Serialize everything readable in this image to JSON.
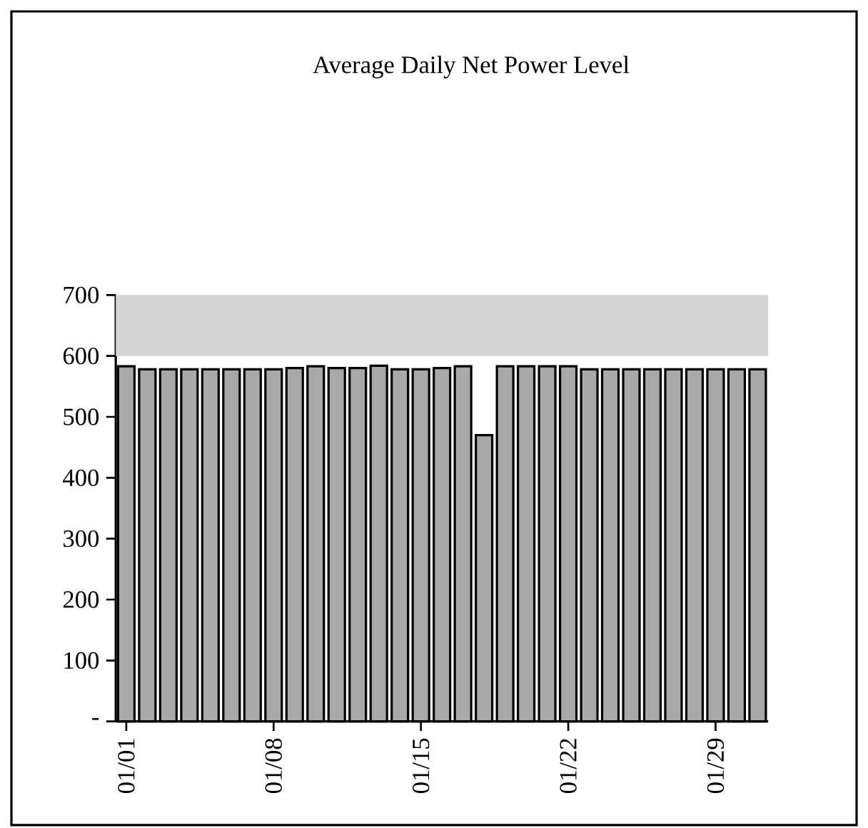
{
  "chart_data": {
    "type": "bar",
    "title": "Average Daily Net Power Level",
    "categories": [
      "01/01",
      null,
      null,
      null,
      null,
      null,
      null,
      "01/08",
      null,
      null,
      null,
      null,
      null,
      null,
      "01/15",
      null,
      null,
      null,
      null,
      null,
      null,
      "01/22",
      null,
      null,
      null,
      null,
      null,
      null,
      "01/29",
      null,
      null
    ],
    "values": [
      583,
      578,
      578,
      578,
      578,
      578,
      578,
      578,
      580,
      583,
      580,
      580,
      584,
      578,
      578,
      580,
      583,
      470,
      583,
      583,
      583,
      583,
      578,
      578,
      578,
      578,
      578,
      578,
      578,
      578,
      578
    ],
    "color": "#a8a8a8",
    "ylim": [
      0,
      700
    ],
    "yticks": [
      {
        "value": 0,
        "label": "-"
      },
      100,
      200,
      300,
      400,
      500,
      600,
      700
    ],
    "bands": [
      {
        "axis": "y",
        "from": 600,
        "to": 700,
        "color": "#d4d4d4"
      }
    ],
    "grid": false
  }
}
